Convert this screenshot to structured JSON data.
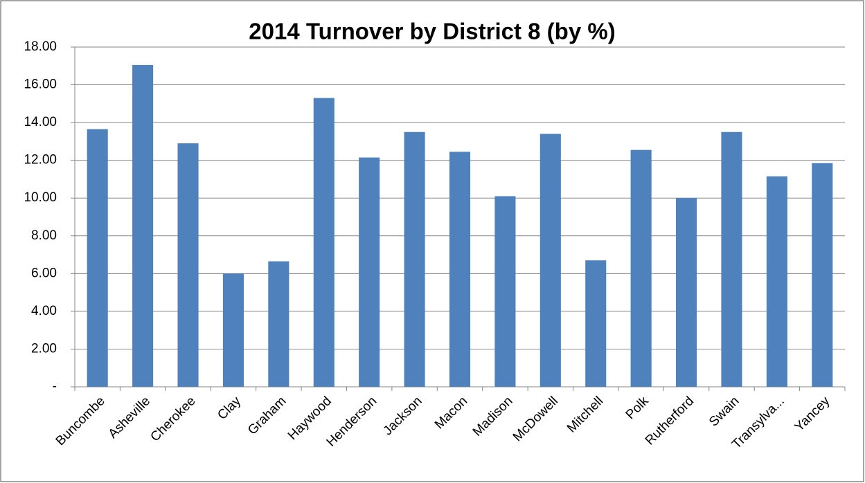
{
  "chart_data": {
    "type": "bar",
    "title": "2014 Turnover by District 8 (by %)",
    "categories": [
      "Buncombe",
      "Asheville",
      "Cherokee",
      "Clay",
      "Graham",
      "Haywood",
      "Henderson",
      "Jackson",
      "Macon",
      "Madison",
      "McDowell",
      "Mitchell",
      "Polk",
      "Rutherford",
      "Swain",
      "Transylva...",
      "Yancey"
    ],
    "values": [
      13.65,
      17.05,
      12.9,
      6.0,
      6.65,
      15.3,
      12.15,
      13.5,
      12.45,
      10.1,
      13.4,
      6.7,
      12.55,
      10.0,
      13.5,
      11.15,
      11.85
    ],
    "color": "#4f81bd",
    "ylim": [
      0,
      18
    ],
    "yticks": [
      {
        "value": 0,
        "label": "-"
      },
      {
        "value": 2,
        "label": "2.00"
      },
      {
        "value": 4,
        "label": "4.00"
      },
      {
        "value": 6,
        "label": "6.00"
      },
      {
        "value": 8,
        "label": "8.00"
      },
      {
        "value": 10,
        "label": "10.00"
      },
      {
        "value": 12,
        "label": "12.00"
      },
      {
        "value": 14,
        "label": "14.00"
      },
      {
        "value": 16,
        "label": "16.00"
      },
      {
        "value": 18,
        "label": "18.00"
      }
    ],
    "grid": true
  }
}
